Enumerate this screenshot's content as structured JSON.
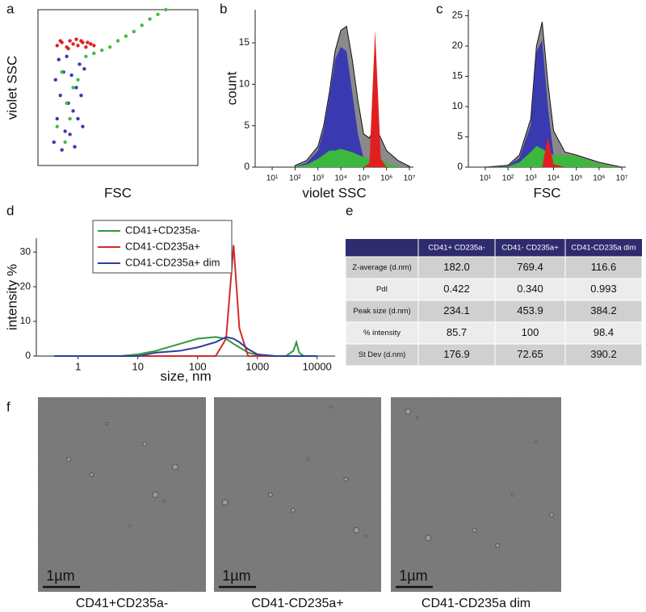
{
  "panel_labels": [
    "a",
    "b",
    "c",
    "d",
    "e",
    "f"
  ],
  "chart_data": [
    {
      "type": "scatter",
      "xlabel": "FSC",
      "ylabel": "violet SSC",
      "xlim": [
        0,
        100
      ],
      "ylim": [
        0,
        100
      ],
      "series": [
        {
          "color": "#3a3ab8",
          "x": [
            10,
            12,
            14,
            16,
            18,
            20,
            22,
            24,
            26,
            28,
            11,
            15,
            19,
            23,
            27,
            13,
            17,
            21,
            25,
            29
          ],
          "values": [
            15,
            30,
            45,
            60,
            70,
            20,
            35,
            50,
            65,
            25,
            55,
            10,
            40,
            12,
            45,
            68,
            22,
            58,
            30,
            62
          ]
        },
        {
          "color": "#44bb44",
          "x": [
            12,
            18,
            25,
            30,
            35,
            40,
            45,
            50,
            55,
            60,
            65,
            70,
            75,
            80,
            15,
            20,
            22,
            17
          ],
          "values": [
            25,
            40,
            55,
            70,
            72,
            74,
            76,
            80,
            83,
            86,
            90,
            94,
            97,
            100,
            60,
            30,
            50,
            15
          ]
        },
        {
          "color": "#e02020",
          "x": [
            12,
            15,
            18,
            20,
            22,
            25,
            28,
            30,
            33,
            35,
            14,
            24,
            19,
            27,
            31
          ],
          "values": [
            77,
            79,
            76,
            80,
            78,
            77,
            79,
            76,
            78,
            77,
            80,
            81,
            75,
            80,
            79
          ]
        }
      ]
    },
    {
      "type": "area",
      "xlabel": "violet SSC",
      "ylabel": "count",
      "log_x": true,
      "xlim": [
        1.8,
        15000000
      ],
      "ylim": [
        0,
        19
      ],
      "xticks": [
        {
          "value": 10,
          "label": "10¹"
        },
        {
          "value": 100,
          "label": "10²"
        },
        {
          "value": 1000,
          "label": "10³"
        },
        {
          "value": 10000,
          "label": "10⁴"
        },
        {
          "value": 100000,
          "label": "10⁵"
        },
        {
          "value": 1000000,
          "label": "10⁶"
        },
        {
          "value": 10000000,
          "label": "10⁷"
        }
      ],
      "yticks": [
        0,
        5,
        10,
        15
      ],
      "x": [
        100,
        316,
        1000,
        1778,
        3162,
        5623,
        10000,
        17783,
        31623,
        56234,
        100000,
        177828,
        316228,
        562341,
        1000000,
        3162278,
        10000000
      ],
      "series": [
        {
          "color": "#8a8a8a",
          "values": [
            0.2,
            0.8,
            2.5,
            5,
            9,
            14,
            16.5,
            17,
            13,
            8,
            4,
            3.5,
            5,
            3.5,
            2,
            0.8,
            0.1
          ]
        },
        {
          "color": "#3a3ab0",
          "values": [
            0.1,
            0.5,
            2,
            4.5,
            8.5,
            13,
            14.5,
            14,
            9,
            4,
            1,
            0.3,
            0.1,
            0,
            0,
            0,
            0
          ]
        },
        {
          "color": "#3cb83c",
          "values": [
            0.1,
            0.3,
            1,
            1.5,
            2,
            2,
            2.2,
            2,
            1.8,
            1.5,
            1.2,
            1,
            1.5,
            1,
            0.5,
            0.1,
            0
          ]
        },
        {
          "color": "#e02020",
          "values": [
            0,
            0,
            0,
            0,
            0,
            0,
            0,
            0,
            0,
            0,
            0,
            0.5,
            16.5,
            1,
            0,
            0,
            0
          ]
        }
      ]
    },
    {
      "type": "area",
      "xlabel": "FSC",
      "log_x": true,
      "xlim": [
        1.8,
        15000000
      ],
      "ylim": [
        0,
        26
      ],
      "xticks": [
        {
          "value": 10,
          "label": "10¹"
        },
        {
          "value": 100,
          "label": "10²"
        },
        {
          "value": 1000,
          "label": "10³"
        },
        {
          "value": 10000,
          "label": "10⁴"
        },
        {
          "value": 100000,
          "label": "10⁵"
        },
        {
          "value": 1000000,
          "label": "10⁶"
        },
        {
          "value": 10000000,
          "label": "10⁷"
        }
      ],
      "yticks": [
        0,
        5,
        10,
        15,
        20,
        25
      ],
      "x": [
        10,
        100,
        316,
        1000,
        1778,
        3162,
        5623,
        10000,
        31623,
        100000,
        1000000,
        10000000
      ],
      "series": [
        {
          "color": "#8a8a8a",
          "values": [
            0,
            0.3,
            2,
            8,
            20,
            24,
            14,
            6,
            2.5,
            2,
            0.8,
            0
          ]
        },
        {
          "color": "#3a3ab0",
          "values": [
            0,
            0.2,
            1.5,
            7,
            19,
            21,
            10,
            2,
            0.2,
            0,
            0,
            0
          ]
        },
        {
          "color": "#3cb83c",
          "values": [
            0,
            0.1,
            0.8,
            2.5,
            3.5,
            3,
            2.5,
            2,
            2,
            1.8,
            0.5,
            0
          ]
        },
        {
          "color": "#e02020",
          "values": [
            0,
            0,
            0,
            0,
            0,
            0,
            5,
            0.5,
            0,
            0,
            0,
            0
          ]
        }
      ]
    },
    {
      "type": "line",
      "xlabel": "size, nm",
      "ylabel": "intensity %",
      "log_x": true,
      "xlim": [
        0.2,
        20000
      ],
      "ylim": [
        0,
        34
      ],
      "xticks": [
        1,
        10,
        100,
        1000,
        10000
      ],
      "yticks": [
        0,
        10,
        20,
        30
      ],
      "legend": "upper-left",
      "x": [
        0.4,
        1,
        5,
        10,
        20,
        50,
        100,
        200,
        300,
        400,
        500,
        700,
        1000,
        2000,
        3000,
        4000,
        4500,
        5000,
        6000,
        10000
      ],
      "series": [
        {
          "name": "CD41+CD235a-",
          "color": "#2e9a3a",
          "values": [
            0,
            0,
            0,
            0.5,
            1.5,
            3.5,
            5,
            5.5,
            5,
            3.5,
            2.5,
            1,
            0.3,
            0,
            0,
            1.5,
            4,
            1,
            0,
            0
          ]
        },
        {
          "name": "CD41-CD235a+",
          "color": "#d42a2a",
          "values": [
            0,
            0,
            0,
            0,
            0,
            0,
            0,
            0,
            5,
            32,
            8,
            0,
            0,
            0,
            0,
            0,
            0,
            0,
            0,
            0
          ]
        },
        {
          "name": "CD41-CD235a+ dim",
          "color": "#2b3f9c",
          "values": [
            0,
            0,
            0,
            0,
            1,
            1.5,
            2.5,
            4,
            5.5,
            5,
            4,
            2,
            0.5,
            0,
            0,
            0,
            0,
            0,
            0,
            0
          ]
        }
      ]
    }
  ],
  "table": {
    "columns": [
      "CD41+ CD235a-",
      "CD41- CD235a+",
      "CD41-CD235a dim"
    ],
    "rows": [
      {
        "label": "Z-average (d.nm)",
        "cells": [
          "182.0",
          "769.4",
          "116.6"
        ]
      },
      {
        "label": "PdI",
        "cells": [
          "0.422",
          "0.340",
          "0.993"
        ]
      },
      {
        "label": "Peak size (d.nm)",
        "cells": [
          "234.1",
          "453.9",
          "384.2"
        ]
      },
      {
        "label": "% intensity",
        "cells": [
          "85.7",
          "100",
          "98.4"
        ]
      },
      {
        "label": "St Dev (d.nm)",
        "cells": [
          "176.9",
          "72.65",
          "390.2"
        ]
      }
    ]
  },
  "images": [
    {
      "scale_bar": "1µm",
      "caption": "CD41+CD235a-"
    },
    {
      "scale_bar": "1µm",
      "caption": "CD41-CD235a+"
    },
    {
      "scale_bar": "1µm",
      "caption": "CD41-CD235a dim"
    }
  ]
}
